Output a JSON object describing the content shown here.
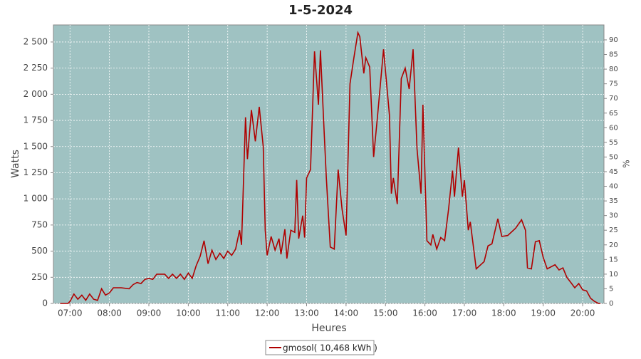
{
  "chart_data": {
    "type": "line",
    "title": "1-5-2024",
    "x_label": "Heures",
    "y_label": "Watts",
    "y2_label": "%",
    "x": [
      6.75,
      6.95,
      7.0,
      7.1,
      7.2,
      7.3,
      7.4,
      7.5,
      7.6,
      7.7,
      7.8,
      7.9,
      8.0,
      8.1,
      8.3,
      8.5,
      8.6,
      8.7,
      8.8,
      8.9,
      9.0,
      9.1,
      9.2,
      9.4,
      9.5,
      9.6,
      9.7,
      9.8,
      9.9,
      10.0,
      10.1,
      10.2,
      10.3,
      10.4,
      10.5,
      10.6,
      10.7,
      10.8,
      10.9,
      11.0,
      11.1,
      11.2,
      11.3,
      11.35,
      11.45,
      11.5,
      11.6,
      11.7,
      11.8,
      11.9,
      11.95,
      12.0,
      12.1,
      12.2,
      12.3,
      12.35,
      12.45,
      12.5,
      12.6,
      12.7,
      12.75,
      12.8,
      12.9,
      12.95,
      13.0,
      13.1,
      13.2,
      13.3,
      13.35,
      13.45,
      13.5,
      13.6,
      13.7,
      13.8,
      13.9,
      14.0,
      14.1,
      14.2,
      14.3,
      14.35,
      14.45,
      14.5,
      14.6,
      14.7,
      14.8,
      14.95,
      15.1,
      15.15,
      15.2,
      15.3,
      15.4,
      15.5,
      15.6,
      15.7,
      15.8,
      15.9,
      15.95,
      16.05,
      16.15,
      16.2,
      16.3,
      16.4,
      16.5,
      16.6,
      16.7,
      16.75,
      16.85,
      16.95,
      17.0,
      17.1,
      17.15,
      17.3,
      17.5,
      17.6,
      17.7,
      17.85,
      17.95,
      18.1,
      18.3,
      18.45,
      18.55,
      18.6,
      18.7,
      18.8,
      18.9,
      19.0,
      19.1,
      19.3,
      19.4,
      19.5,
      19.6,
      19.7,
      19.8,
      19.9,
      20.0,
      20.1,
      20.2,
      20.3,
      20.4,
      20.45
    ],
    "series": [
      {
        "name": "gmosol( 10,468 kWh )",
        "color": "#b00000",
        "values": [
          0,
          0,
          20,
          90,
          40,
          80,
          30,
          90,
          40,
          30,
          140,
          80,
          100,
          150,
          150,
          140,
          180,
          200,
          190,
          230,
          240,
          230,
          280,
          280,
          240,
          280,
          240,
          280,
          230,
          290,
          240,
          360,
          450,
          600,
          380,
          510,
          420,
          480,
          430,
          500,
          460,
          520,
          700,
          560,
          1780,
          1380,
          1850,
          1550,
          1880,
          1500,
          700,
          460,
          640,
          510,
          620,
          470,
          710,
          430,
          700,
          680,
          1180,
          620,
          840,
          630,
          1200,
          1280,
          2410,
          1900,
          2420,
          1600,
          1200,
          540,
          520,
          1280,
          900,
          650,
          2100,
          2350,
          2590,
          2550,
          2200,
          2350,
          2260,
          1400,
          1800,
          2430,
          1800,
          1050,
          1200,
          950,
          2150,
          2250,
          2050,
          2430,
          1480,
          1050,
          1900,
          600,
          560,
          660,
          520,
          630,
          600,
          900,
          1270,
          1020,
          1490,
          1020,
          1180,
          700,
          780,
          330,
          400,
          550,
          570,
          810,
          640,
          650,
          720,
          800,
          700,
          340,
          330,
          590,
          600,
          440,
          330,
          370,
          320,
          340,
          250,
          200,
          150,
          190,
          130,
          120,
          50,
          20,
          0,
          0
        ]
      }
    ],
    "xlim": [
      6.58,
      20.54
    ],
    "xticks": [
      {
        "value": 7,
        "label": "07:00"
      },
      {
        "value": 8,
        "label": "08:00"
      },
      {
        "value": 9,
        "label": "09:00"
      },
      {
        "value": 10,
        "label": "10:00"
      },
      {
        "value": 11,
        "label": "11:00"
      },
      {
        "value": 12,
        "label": "12:00"
      },
      {
        "value": 13,
        "label": "13:00"
      },
      {
        "value": 14,
        "label": "14:00"
      },
      {
        "value": 15,
        "label": "15:00"
      },
      {
        "value": 16,
        "label": "16:00"
      },
      {
        "value": 17,
        "label": "17:00"
      },
      {
        "value": 18,
        "label": "18:00"
      },
      {
        "value": 19,
        "label": "19:00"
      },
      {
        "value": 20,
        "label": "20:00"
      }
    ],
    "ylim": [
      0,
      2663
    ],
    "yticks": [
      0,
      250,
      500,
      750,
      {
        "value": 1000,
        "label": "1 000"
      },
      {
        "value": 1250,
        "label": "1 250"
      },
      {
        "value": 1500,
        "label": "1 500"
      },
      {
        "value": 1750,
        "label": "1 750"
      },
      {
        "value": 2000,
        "label": "2 000"
      },
      {
        "value": 2250,
        "label": "2 250"
      },
      {
        "value": 2500,
        "label": "2 500"
      }
    ],
    "y2lim": [
      0,
      95.1
    ],
    "y2ticks": [
      0,
      5,
      10,
      15,
      20,
      25,
      30,
      35,
      40,
      45,
      50,
      55,
      60,
      65,
      70,
      75,
      80,
      85,
      90
    ],
    "grid": true,
    "plot_background": "#9fc2c2"
  }
}
